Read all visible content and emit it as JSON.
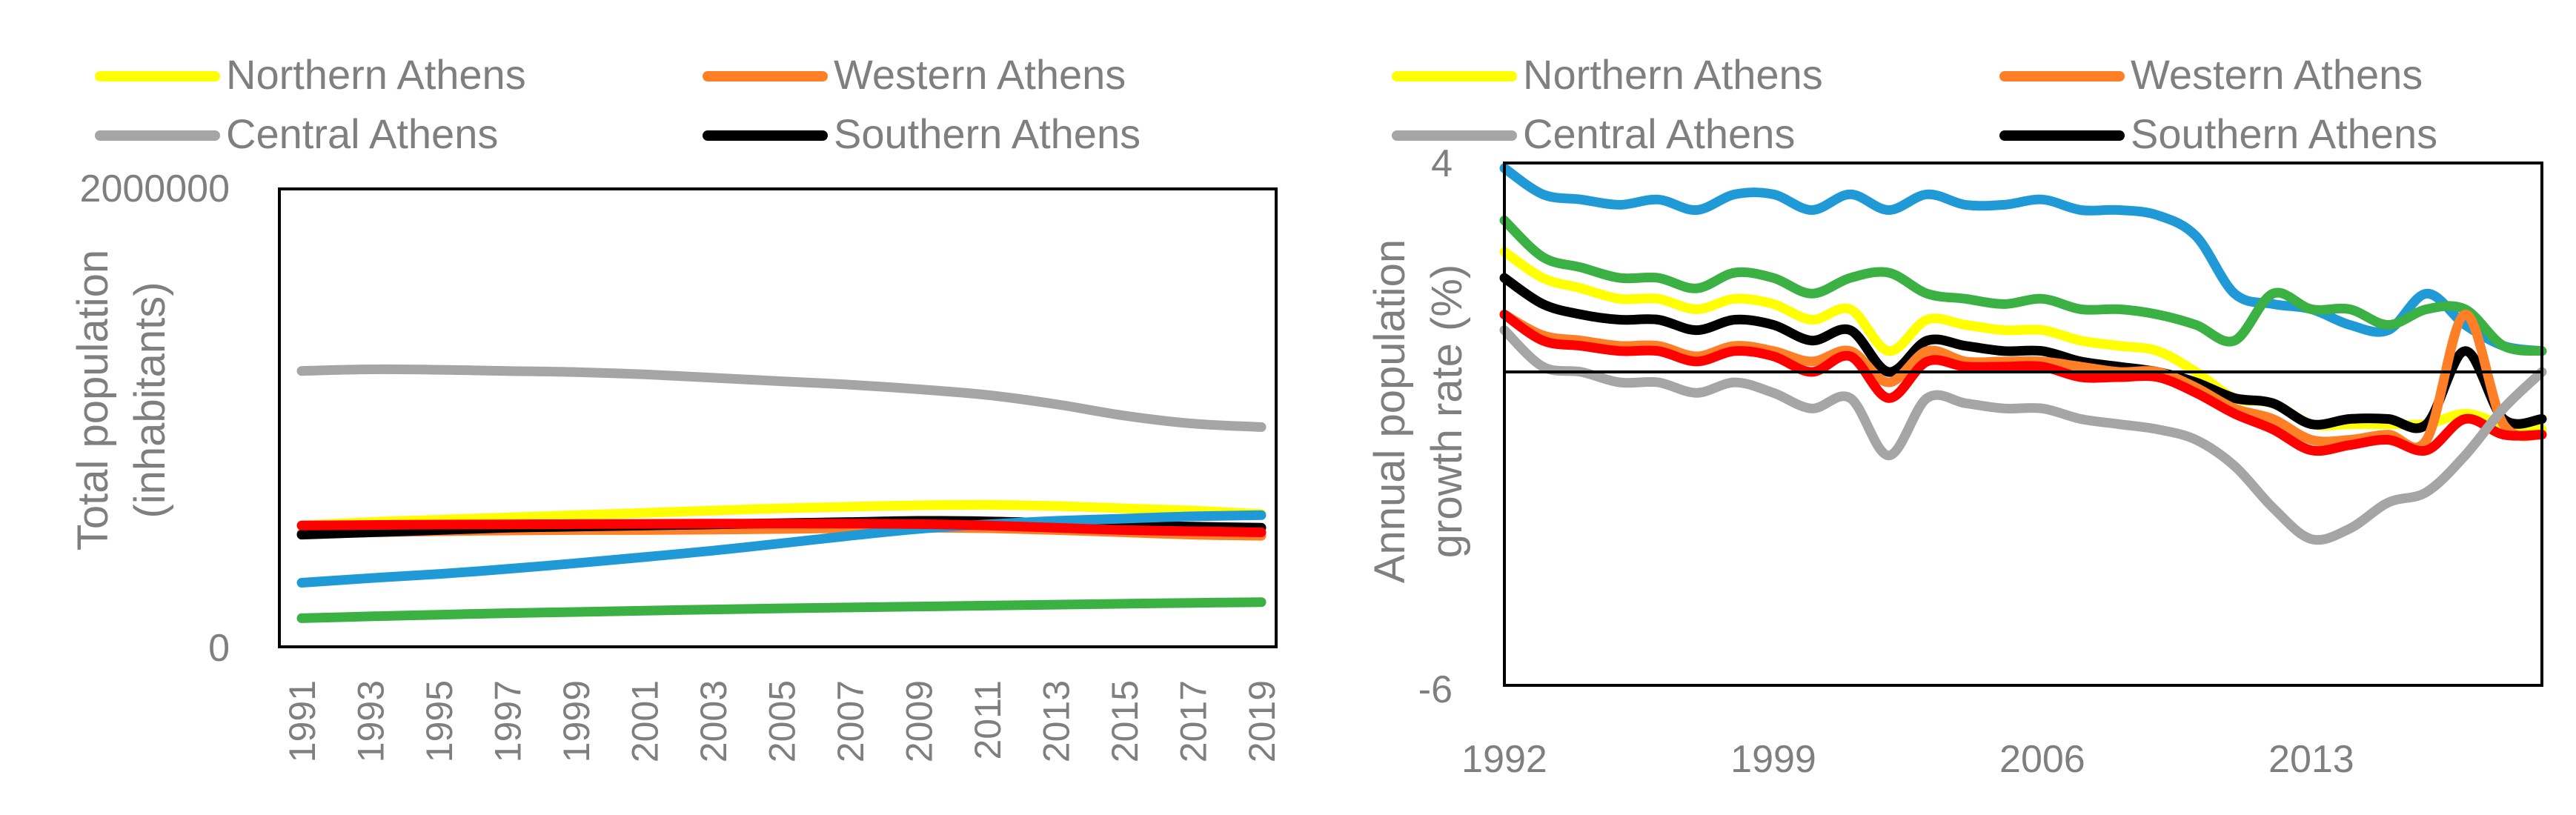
{
  "chart_data": [
    {
      "type": "line",
      "title": "",
      "xlabel": "",
      "ylabel": "Total population (inhabitants)",
      "ylabel_lines": [
        "Total population",
        "(inhabitants)"
      ],
      "ylim": [
        0,
        2000000
      ],
      "yticks": [
        {
          "value": 0,
          "label": "0"
        },
        {
          "value": 2000000,
          "label": "2000000"
        }
      ],
      "xlim": [
        1991,
        2019
      ],
      "xticks": [
        1991,
        1993,
        1995,
        1997,
        1999,
        2001,
        2003,
        2005,
        2007,
        2009,
        2011,
        2013,
        2015,
        2017,
        2019
      ],
      "x": [
        1991,
        1993,
        1995,
        1997,
        1999,
        2001,
        2003,
        2005,
        2007,
        2009,
        2011,
        2013,
        2015,
        2017,
        2019
      ],
      "series": [
        {
          "name": "Central Athens",
          "color": "#a5a5a5",
          "values": [
            1205000,
            1212000,
            1210000,
            1205000,
            1200000,
            1190000,
            1175000,
            1160000,
            1145000,
            1125000,
            1100000,
            1060000,
            1010000,
            975000,
            960000
          ]
        },
        {
          "name": "Northern Athens",
          "color": "#ffff00",
          "values": [
            530000,
            545000,
            555000,
            565000,
            575000,
            585000,
            595000,
            605000,
            612000,
            618000,
            620000,
            615000,
            605000,
            595000,
            580000
          ]
        },
        {
          "name": "Western Athens",
          "color": "#ff7f27",
          "values": [
            495000,
            500000,
            505000,
            508000,
            510000,
            510000,
            512000,
            515000,
            518000,
            520000,
            518000,
            510000,
            500000,
            490000,
            485000
          ]
        },
        {
          "name": "Southern Athens",
          "color": "#000000",
          "values": [
            490000,
            500000,
            510000,
            520000,
            525000,
            530000,
            535000,
            540000,
            545000,
            550000,
            548000,
            540000,
            530000,
            525000,
            520000
          ]
        },
        {
          "name": "",
          "color": "#1f9ad6",
          "values": [
            280000,
            300000,
            318000,
            340000,
            365000,
            392000,
            420000,
            452000,
            485000,
            515000,
            535000,
            550000,
            560000,
            570000,
            575000
          ]
        },
        {
          "name": "",
          "color": "#ff0000",
          "values": [
            530000,
            532000,
            534000,
            535000,
            536000,
            537000,
            538000,
            538000,
            538000,
            536000,
            530000,
            520000,
            510000,
            505000,
            500000
          ]
        },
        {
          "name": "",
          "color": "#3bb043",
          "values": [
            125000,
            133000,
            140000,
            147000,
            152000,
            158000,
            163000,
            168000,
            172000,
            176000,
            180000,
            184000,
            188000,
            192000,
            195000
          ]
        }
      ]
    },
    {
      "type": "line",
      "title": "",
      "xlabel": "",
      "ylabel": "Annual population growth rate (%)",
      "ylabel_lines": [
        "Annual population",
        "growth rate (%)"
      ],
      "ylim": [
        -6,
        4
      ],
      "yticks": [
        {
          "value": -6,
          "label": "-6"
        },
        {
          "value": 4,
          "label": "4"
        }
      ],
      "xlim": [
        1992,
        2019
      ],
      "xticks": [
        1992,
        1999,
        2006,
        2013
      ],
      "x": [
        1992,
        1993,
        1994,
        1995,
        1996,
        1997,
        1998,
        1999,
        2000,
        2001,
        2002,
        2003,
        2004,
        2005,
        2006,
        2007,
        2008,
        2009,
        2010,
        2011,
        2012,
        2013,
        2014,
        2015,
        2016,
        2017,
        2018,
        2019
      ],
      "series": [
        {
          "name": "",
          "color": "#1f9ad6",
          "values": [
            3.9,
            3.4,
            3.3,
            3.2,
            3.3,
            3.1,
            3.4,
            3.4,
            3.1,
            3.4,
            3.1,
            3.4,
            3.2,
            3.2,
            3.3,
            3.1,
            3.1,
            3.0,
            2.6,
            1.5,
            1.3,
            1.2,
            0.9,
            0.8,
            1.5,
            0.9,
            0.5,
            0.4
          ]
        },
        {
          "name": "",
          "color": "#3bb043",
          "values": [
            2.9,
            2.2,
            2.0,
            1.8,
            1.8,
            1.6,
            1.9,
            1.8,
            1.5,
            1.8,
            1.9,
            1.5,
            1.4,
            1.3,
            1.4,
            1.2,
            1.2,
            1.1,
            0.9,
            0.6,
            1.5,
            1.2,
            1.2,
            0.9,
            1.2,
            1.2,
            0.5,
            0.4
          ]
        },
        {
          "name": "Northern Athens",
          "color": "#ffff00",
          "values": [
            2.3,
            1.8,
            1.6,
            1.4,
            1.4,
            1.2,
            1.4,
            1.3,
            1.0,
            1.2,
            0.4,
            1.0,
            0.9,
            0.8,
            0.8,
            0.6,
            0.5,
            0.4,
            0.0,
            -0.5,
            -0.6,
            -1.0,
            -1.0,
            -1.0,
            -1.0,
            -0.8,
            -1.0,
            -1.1
          ]
        },
        {
          "name": "Southern Athens",
          "color": "#000000",
          "values": [
            1.8,
            1.3,
            1.1,
            1.0,
            1.0,
            0.8,
            1.0,
            0.9,
            0.6,
            0.8,
            0.0,
            0.6,
            0.5,
            0.4,
            0.4,
            0.2,
            0.1,
            0.0,
            -0.2,
            -0.5,
            -0.6,
            -1.0,
            -0.9,
            -0.9,
            -1.0,
            0.4,
            -0.9,
            -0.9
          ]
        },
        {
          "name": "Western Athens",
          "color": "#ff7f27",
          "values": [
            1.1,
            0.7,
            0.6,
            0.5,
            0.5,
            0.3,
            0.5,
            0.4,
            0.2,
            0.4,
            -0.2,
            0.4,
            0.2,
            0.2,
            0.2,
            0.1,
            0.0,
            0.0,
            -0.3,
            -0.7,
            -0.9,
            -1.3,
            -1.3,
            -1.2,
            -1.3,
            1.1,
            -1.0,
            -1.2
          ]
        },
        {
          "name": "",
          "color": "#ff0000",
          "values": [
            1.1,
            0.6,
            0.5,
            0.4,
            0.4,
            0.2,
            0.4,
            0.3,
            0.0,
            0.3,
            -0.5,
            0.2,
            0.1,
            0.1,
            0.1,
            -0.1,
            -0.1,
            -0.1,
            -0.4,
            -0.8,
            -1.1,
            -1.5,
            -1.4,
            -1.3,
            -1.5,
            -0.9,
            -1.2,
            -1.2
          ]
        },
        {
          "name": "Central Athens",
          "color": "#a5a5a5",
          "values": [
            0.8,
            0.1,
            0.0,
            -0.2,
            -0.2,
            -0.4,
            -0.2,
            -0.4,
            -0.7,
            -0.5,
            -1.6,
            -0.5,
            -0.6,
            -0.7,
            -0.7,
            -0.9,
            -1.0,
            -1.1,
            -1.3,
            -1.8,
            -2.6,
            -3.2,
            -3.0,
            -2.5,
            -2.3,
            -1.6,
            -0.7,
            0.0
          ]
        }
      ]
    }
  ],
  "legends": [
    {
      "items": [
        {
          "label": "Northern Athens",
          "color": "#ffff00"
        },
        {
          "label": "Western Athens",
          "color": "#ff7f27"
        },
        {
          "label": "Central Athens",
          "color": "#a5a5a5"
        },
        {
          "label": "Southern Athens",
          "color": "#000000"
        }
      ]
    },
    {
      "items": [
        {
          "label": "Northern Athens",
          "color": "#ffff00"
        },
        {
          "label": "Western Athens",
          "color": "#ff7f27"
        },
        {
          "label": "Central Athens",
          "color": "#a5a5a5"
        },
        {
          "label": "Southern Athens",
          "color": "#000000"
        }
      ]
    }
  ]
}
